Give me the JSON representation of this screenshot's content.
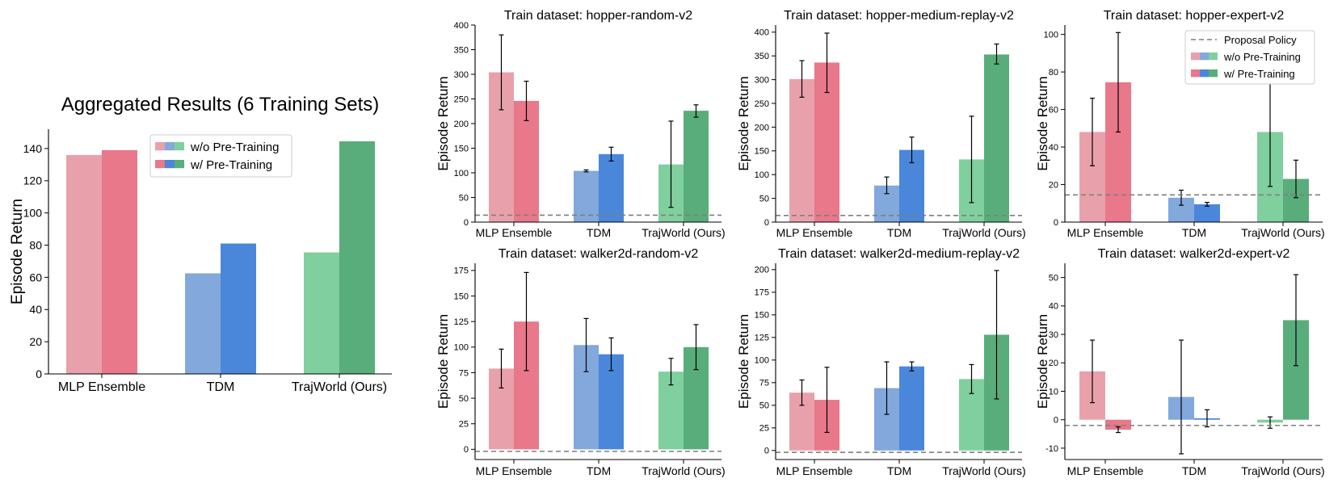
{
  "colors": {
    "mlp_light": "#e8a1ab",
    "mlp_dark": "#e8788a",
    "tdm_light": "#82a8dc",
    "tdm_dark": "#4a87da",
    "traj_light": "#80cf9e",
    "traj_dark": "#59ad7a",
    "proposal": "#7f7f7f"
  },
  "legend": {
    "without": "w/o Pre-Training",
    "with": "w/ Pre-Training",
    "proposal": "Proposal Policy"
  },
  "chart_data": [
    {
      "type": "bar",
      "title": "Aggregated Results (6 Training Sets)",
      "ylabel": "Episode Return",
      "categories": [
        "MLP Ensemble",
        "TDM",
        "TrajWorld (Ours)"
      ],
      "series": [
        {
          "name": "w/o Pre-Training",
          "values": [
            136,
            62.5,
            75.5
          ]
        },
        {
          "name": "w/ Pre-Training",
          "values": [
            139,
            81,
            144.5
          ]
        }
      ],
      "ylim": [
        0,
        152
      ],
      "yticks": [
        0,
        20,
        40,
        60,
        80,
        100,
        120,
        140
      ],
      "legend": "top-center"
    },
    {
      "type": "bar",
      "title": "Train dataset: hopper-random-v2",
      "ylabel": "Episode Return",
      "categories": [
        "MLP Ensemble",
        "TDM",
        "TrajWorld (Ours)"
      ],
      "series": [
        {
          "name": "w/o Pre-Training",
          "values": [
            304,
            104,
            117
          ],
          "err_low": [
            228,
            102,
            30
          ],
          "err_high": [
            380,
            106,
            205
          ]
        },
        {
          "name": "w/ Pre-Training",
          "values": [
            246,
            138,
            226
          ],
          "err_low": [
            206,
            124,
            213
          ],
          "err_high": [
            286,
            152,
            238
          ]
        }
      ],
      "proposal": 14,
      "ylim": [
        0,
        400
      ],
      "yticks": [
        0,
        50,
        100,
        150,
        200,
        250,
        300,
        350,
        400
      ]
    },
    {
      "type": "bar",
      "title": "Train dataset: hopper-medium-replay-v2",
      "ylabel": "Episode Return",
      "categories": [
        "MLP Ensemble",
        "TDM",
        "TrajWorld (Ours)"
      ],
      "series": [
        {
          "name": "w/o Pre-Training",
          "values": [
            301,
            77,
            132
          ],
          "err_low": [
            263,
            60,
            41
          ],
          "err_high": [
            340,
            95,
            223
          ]
        },
        {
          "name": "w/ Pre-Training",
          "values": [
            336,
            152,
            353
          ],
          "err_low": [
            273,
            125,
            333
          ],
          "err_high": [
            398,
            179,
            375
          ]
        }
      ],
      "proposal": 14,
      "ylim": [
        0,
        415
      ],
      "yticks": [
        0,
        50,
        100,
        150,
        200,
        250,
        300,
        350,
        400
      ]
    },
    {
      "type": "bar",
      "title": "Train dataset: hopper-expert-v2",
      "ylabel": "Episode Return",
      "categories": [
        "MLP Ensemble",
        "TDM",
        "TrajWorld (Ours)"
      ],
      "series": [
        {
          "name": "w/o Pre-Training",
          "values": [
            48,
            13,
            48
          ],
          "err_low": [
            30,
            9,
            19
          ],
          "err_high": [
            66,
            17,
            77
          ]
        },
        {
          "name": "w/ Pre-Training",
          "values": [
            74.5,
            9.5,
            23
          ],
          "err_low": [
            48,
            8.5,
            13
          ],
          "err_high": [
            101,
            10.5,
            33
          ]
        }
      ],
      "proposal": 14.5,
      "ylim": [
        0,
        105
      ],
      "yticks": [
        0,
        20,
        40,
        60,
        80,
        100
      ],
      "legend": "top-right"
    },
    {
      "type": "bar",
      "title": "Train dataset: walker2d-random-v2",
      "ylabel": "Episode Return",
      "categories": [
        "MLP Ensemble",
        "TDM",
        "TrajWorld (Ours)"
      ],
      "series": [
        {
          "name": "w/o Pre-Training",
          "values": [
            79,
            102,
            76
          ],
          "err_low": [
            60,
            76,
            63
          ],
          "err_high": [
            98,
            128,
            89
          ]
        },
        {
          "name": "w/ Pre-Training",
          "values": [
            125,
            93,
            100
          ],
          "err_low": [
            77,
            77,
            78
          ],
          "err_high": [
            173,
            109,
            122
          ]
        }
      ],
      "proposal": -2,
      "ylim": [
        -10,
        182
      ],
      "yticks": [
        0,
        25,
        50,
        75,
        100,
        125,
        150,
        175
      ]
    },
    {
      "type": "bar",
      "title": "Train dataset: walker2d-medium-replay-v2",
      "ylabel": "Episode Return",
      "categories": [
        "MLP Ensemble",
        "TDM",
        "TrajWorld (Ours)"
      ],
      "series": [
        {
          "name": "w/o Pre-Training",
          "values": [
            64,
            69,
            79
          ],
          "err_low": [
            50,
            40,
            63
          ],
          "err_high": [
            78,
            98,
            95
          ]
        },
        {
          "name": "w/ Pre-Training",
          "values": [
            56,
            93,
            128
          ],
          "err_low": [
            20,
            88,
            57
          ],
          "err_high": [
            92,
            98,
            199
          ]
        }
      ],
      "proposal": -2,
      "ylim": [
        -10,
        207
      ],
      "yticks": [
        0,
        25,
        50,
        75,
        100,
        125,
        150,
        175,
        200
      ]
    },
    {
      "type": "bar",
      "title": "Train dataset: walker2d-expert-v2",
      "ylabel": "Episode Return",
      "categories": [
        "MLP Ensemble",
        "TDM",
        "TrajWorld (Ours)"
      ],
      "series": [
        {
          "name": "w/o Pre-Training",
          "values": [
            17,
            8,
            -1
          ],
          "err_low": [
            6,
            -12,
            -3
          ],
          "err_high": [
            28,
            28,
            1
          ]
        },
        {
          "name": "w/ Pre-Training",
          "values": [
            -3.5,
            0.5,
            35
          ],
          "err_low": [
            -4.5,
            -2.5,
            19
          ],
          "err_high": [
            -2.5,
            3.5,
            51
          ]
        }
      ],
      "proposal": -2,
      "ylim": [
        -14,
        55
      ],
      "yticks": [
        -10,
        0,
        10,
        20,
        30,
        40,
        50
      ]
    }
  ]
}
